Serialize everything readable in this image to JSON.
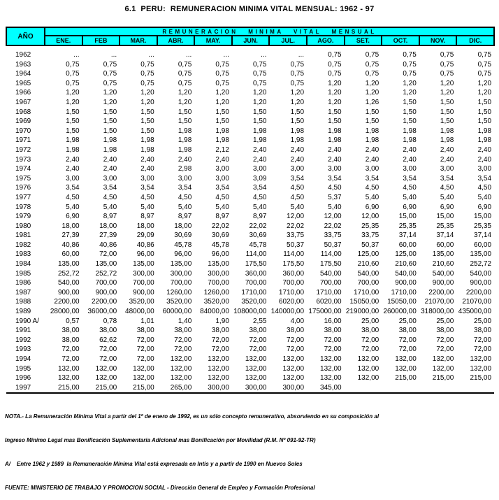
{
  "title": "6.1  PERU:  REMUNERACION MINIMA VITAL MENSUAL: 1962 - 97",
  "colors": {
    "header_bg": "#00FFFF",
    "border": "#000000",
    "text": "#000000",
    "page_bg": "#FFFFFF"
  },
  "table": {
    "group_header": "REMUNERACION MINIMA VITAL MENSUAL",
    "year_header": "AÑO",
    "months": [
      "ENE.",
      "FEB",
      "MAR.",
      "ABR.",
      "MAY.",
      "JUN.",
      "JUL.",
      "AGO.",
      "SET.",
      "OCT.",
      "NOV.",
      "DIC."
    ],
    "rows": [
      {
        "year": "1962",
        "values": [
          "...",
          "...",
          "...",
          "...",
          "...",
          "...",
          "...",
          "0,75",
          "0,75",
          "0,75",
          "0,75",
          "0,75"
        ]
      },
      {
        "year": "1963",
        "values": [
          "0,75",
          "0,75",
          "0,75",
          "0,75",
          "0,75",
          "0,75",
          "0,75",
          "0,75",
          "0,75",
          "0,75",
          "0,75",
          "0,75"
        ]
      },
      {
        "year": "1964",
        "values": [
          "0,75",
          "0,75",
          "0,75",
          "0,75",
          "0,75",
          "0,75",
          "0,75",
          "0,75",
          "0,75",
          "0,75",
          "0,75",
          "0,75"
        ]
      },
      {
        "year": "1965",
        "values": [
          "0,75",
          "0,75",
          "0,75",
          "0,75",
          "0,75",
          "0,75",
          "0,75",
          "1,20",
          "1,20",
          "1,20",
          "1,20",
          "1,20"
        ]
      },
      {
        "year": "1966",
        "values": [
          "1,20",
          "1,20",
          "1,20",
          "1,20",
          "1,20",
          "1,20",
          "1,20",
          "1,20",
          "1,20",
          "1,20",
          "1,20",
          "1,20"
        ]
      },
      {
        "year": "1967",
        "values": [
          "1,20",
          "1,20",
          "1,20",
          "1,20",
          "1,20",
          "1,20",
          "1,20",
          "1,20",
          "1,26",
          "1,50",
          "1,50",
          "1,50"
        ]
      },
      {
        "year": "1968",
        "values": [
          "1,50",
          "1,50",
          "1,50",
          "1,50",
          "1,50",
          "1,50",
          "1,50",
          "1,50",
          "1,50",
          "1,50",
          "1,50",
          "1,50"
        ]
      },
      {
        "year": "1969",
        "values": [
          "1,50",
          "1,50",
          "1,50",
          "1,50",
          "1,50",
          "1,50",
          "1,50",
          "1,50",
          "1,50",
          "1,50",
          "1,50",
          "1,50"
        ]
      },
      {
        "year": "1970",
        "values": [
          "1,50",
          "1,50",
          "1,50",
          "1,98",
          "1,98",
          "1,98",
          "1,98",
          "1,98",
          "1,98",
          "1,98",
          "1,98",
          "1,98"
        ]
      },
      {
        "year": "1971",
        "values": [
          "1,98",
          "1,98",
          "1,98",
          "1,98",
          "1,98",
          "1,98",
          "1,98",
          "1,98",
          "1,98",
          "1,98",
          "1,98",
          "1,98"
        ]
      },
      {
        "year": "1972",
        "values": [
          "1,98",
          "1,98",
          "1,98",
          "1,98",
          "2,12",
          "2,40",
          "2,40",
          "2,40",
          "2,40",
          "2,40",
          "2,40",
          "2,40"
        ]
      },
      {
        "year": "1973",
        "values": [
          "2,40",
          "2,40",
          "2,40",
          "2,40",
          "2,40",
          "2,40",
          "2,40",
          "2,40",
          "2,40",
          "2,40",
          "2,40",
          "2,40"
        ]
      },
      {
        "year": "1974",
        "values": [
          "2,40",
          "2,40",
          "2,40",
          "2,98",
          "3,00",
          "3,00",
          "3,00",
          "3,00",
          "3,00",
          "3,00",
          "3,00",
          "3,00"
        ]
      },
      {
        "year": "1975",
        "values": [
          "3,00",
          "3,00",
          "3,00",
          "3,00",
          "3,00",
          "3,09",
          "3,54",
          "3,54",
          "3,54",
          "3,54",
          "3,54",
          "3,54"
        ]
      },
      {
        "year": "1976",
        "values": [
          "3,54",
          "3,54",
          "3,54",
          "3,54",
          "3,54",
          "3,54",
          "4,50",
          "4,50",
          "4,50",
          "4,50",
          "4,50",
          "4,50"
        ]
      },
      {
        "year": "1977",
        "values": [
          "4,50",
          "4,50",
          "4,50",
          "4,50",
          "4,50",
          "4,50",
          "4,50",
          "5,37",
          "5,40",
          "5,40",
          "5,40",
          "5,40"
        ]
      },
      {
        "year": "1978",
        "values": [
          "5,40",
          "5,40",
          "5,40",
          "5,40",
          "5,40",
          "5,40",
          "5,40",
          "5,40",
          "6,90",
          "6,90",
          "6,90",
          "6,90"
        ]
      },
      {
        "year": "1979",
        "values": [
          "6,90",
          "8,97",
          "8,97",
          "8,97",
          "8,97",
          "8,97",
          "12,00",
          "12,00",
          "12,00",
          "15,00",
          "15,00",
          "15,00"
        ]
      },
      {
        "year": "1980",
        "values": [
          "18,00",
          "18,00",
          "18,00",
          "18,00",
          "22,02",
          "22,02",
          "22,02",
          "22,02",
          "25,35",
          "25,35",
          "25,35",
          "25,35"
        ]
      },
      {
        "year": "1981",
        "values": [
          "27,39",
          "27,39",
          "29,09",
          "30,69",
          "30,69",
          "30,69",
          "33,75",
          "33,75",
          "33,75",
          "37,14",
          "37,14",
          "37,14"
        ]
      },
      {
        "year": "1982",
        "values": [
          "40,86",
          "40,86",
          "40,86",
          "45,78",
          "45,78",
          "45,78",
          "50,37",
          "50,37",
          "50,37",
          "60,00",
          "60,00",
          "60,00"
        ]
      },
      {
        "year": "1983",
        "values": [
          "60,00",
          "72,00",
          "96,00",
          "96,00",
          "96,00",
          "114,00",
          "114,00",
          "114,00",
          "125,00",
          "125,00",
          "135,00",
          "135,00"
        ]
      },
      {
        "year": "1984",
        "values": [
          "135,00",
          "135,00",
          "135,00",
          "135,00",
          "135,00",
          "175,50",
          "175,50",
          "175,50",
          "210,60",
          "210,60",
          "210,60",
          "252,72"
        ]
      },
      {
        "year": "1985",
        "values": [
          "252,72",
          "252,72",
          "300,00",
          "300,00",
          "300,00",
          "360,00",
          "360,00",
          "540,00",
          "540,00",
          "540,00",
          "540,00",
          "540,00"
        ]
      },
      {
        "year": "1986",
        "values": [
          "540,00",
          "700,00",
          "700,00",
          "700,00",
          "700,00",
          "700,00",
          "700,00",
          "700,00",
          "700,00",
          "900,00",
          "900,00",
          "900,00"
        ]
      },
      {
        "year": "1987",
        "values": [
          "900,00",
          "900,00",
          "900,00",
          "1260,00",
          "1260,00",
          "1710,00",
          "1710,00",
          "1710,00",
          "1710,00",
          "1710,00",
          "2200,00",
          "2200,00"
        ]
      },
      {
        "year": "1988",
        "values": [
          "2200,00",
          "2200,00",
          "3520,00",
          "3520,00",
          "3520,00",
          "3520,00",
          "6020,00",
          "6020,00",
          "15050,00",
          "15050,00",
          "21070,00",
          "21070,00"
        ]
      },
      {
        "year": "1989",
        "values": [
          "28000,00",
          "36000,00",
          "48000,00",
          "60000,00",
          "84000,00",
          "108000,00",
          "140000,00",
          "175000,00",
          "219000,00",
          "260000,00",
          "318000,00",
          "435000,00"
        ]
      },
      {
        "year": "1990 A/",
        "values": [
          "0,57",
          "0,78",
          "1,01",
          "1,40",
          "1,90",
          "2,55",
          "4,00",
          "16,00",
          "25,00",
          "25,00",
          "25,00",
          "25,00"
        ]
      },
      {
        "year": "1991",
        "values": [
          "38,00",
          "38,00",
          "38,00",
          "38,00",
          "38,00",
          "38,00",
          "38,00",
          "38,00",
          "38,00",
          "38,00",
          "38,00",
          "38,00"
        ]
      },
      {
        "year": "1992",
        "values": [
          "38,00",
          "62,62",
          "72,00",
          "72,00",
          "72,00",
          "72,00",
          "72,00",
          "72,00",
          "72,00",
          "72,00",
          "72,00",
          "72,00"
        ]
      },
      {
        "year": "1993",
        "values": [
          "72,00",
          "72,00",
          "72,00",
          "72,00",
          "72,00",
          "72,00",
          "72,00",
          "72,00",
          "72,00",
          "72,00",
          "72,00",
          "72,00"
        ]
      },
      {
        "year": "1994",
        "values": [
          "72,00",
          "72,00",
          "72,00",
          "132,00",
          "132,00",
          "132,00",
          "132,00",
          "132,00",
          "132,00",
          "132,00",
          "132,00",
          "132,00"
        ]
      },
      {
        "year": "1995",
        "values": [
          "132,00",
          "132,00",
          "132,00",
          "132,00",
          "132,00",
          "132,00",
          "132,00",
          "132,00",
          "132,00",
          "132,00",
          "132,00",
          "132,00"
        ]
      },
      {
        "year": "1996",
        "values": [
          "132,00",
          "132,00",
          "132,00",
          "132,00",
          "132,00",
          "132,00",
          "132,00",
          "132,00",
          "132,00",
          "215,00",
          "215,00",
          "215,00"
        ]
      },
      {
        "year": "1997",
        "values": [
          "215,00",
          "215,00",
          "215,00",
          "265,00",
          "300,00",
          "300,00",
          "300,00",
          "345,00",
          "",
          "",
          "",
          ""
        ]
      }
    ]
  },
  "notes": [
    "NOTA.- La Remuneración Mínima Vital a partir del 1º de enero de 1992, es un sólo concepto remunerativo, absorviendo en su composición al",
    "Ingreso Mínimo Legal mas Bonificación Suplementaria Adicional mas Bonificación por Movilidad (R.M. Nº 091-92-TR)",
    "A/    Entre 1962 y 1989  la Remuneración Mínima Vital está expresada en Intis y a partir de 1990 en Nuevos Soles",
    "FUENTE: MINISTERIO DE TRABAJO Y PROMOCION SOCIAL - Dirección General de Empleo y Formación Profesional"
  ]
}
